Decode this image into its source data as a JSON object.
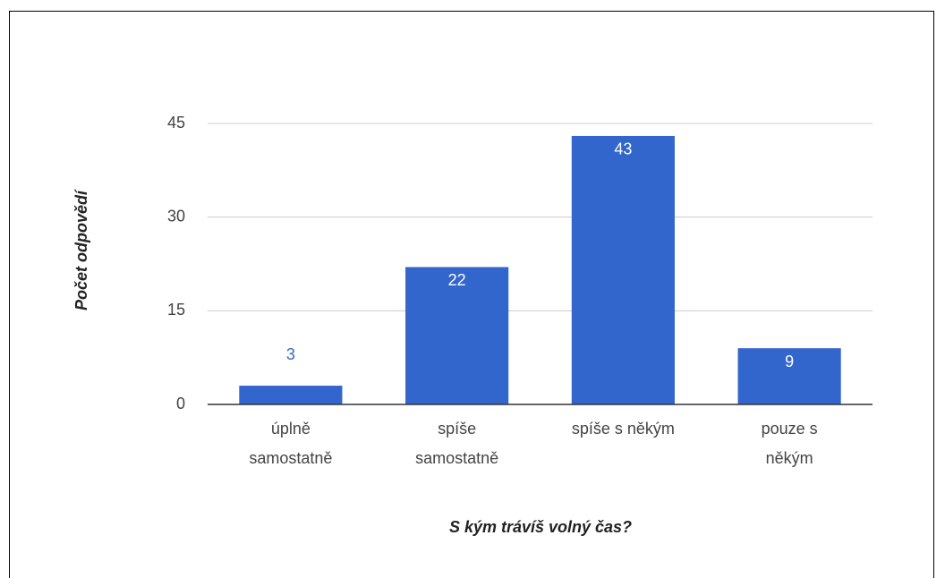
{
  "chart_data": {
    "type": "bar",
    "categories": [
      [
        "úplně",
        "samostatně"
      ],
      [
        "spíše",
        "samostatně"
      ],
      [
        "spíše s někým"
      ],
      [
        "pouze s",
        "někým"
      ]
    ],
    "values": [
      3,
      22,
      43,
      9
    ],
    "color": "#3366cc",
    "x_label": "S kým trávíš volný čas?",
    "y_label": "Počet odpovědí",
    "ylim": [
      0,
      45
    ],
    "yticks": [
      0,
      15,
      30,
      45
    ],
    "grid": true
  }
}
